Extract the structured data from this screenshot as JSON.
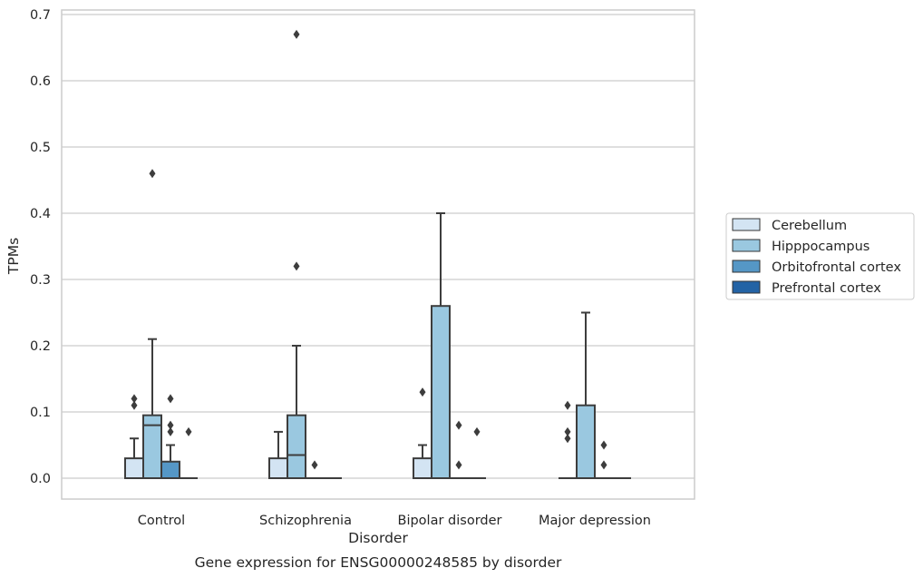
{
  "chart_data": {
    "type": "box",
    "title": "Gene expression for ENSG00000248585 by disorder",
    "xlabel": "Disorder",
    "ylabel": "TPMs",
    "ylim": [
      -0.032,
      0.705
    ],
    "yticks": [
      0.0,
      0.1,
      0.2,
      0.3,
      0.4,
      0.5,
      0.6,
      0.7
    ],
    "ytick_labels": [
      "0.0",
      "0.1",
      "0.2",
      "0.3",
      "0.4",
      "0.5",
      "0.6",
      "0.7"
    ],
    "grid": "horizontal",
    "legend_position": "right",
    "categories": [
      "Control",
      "Schizophrenia",
      "Bipolar disorder",
      "Major depression"
    ],
    "series": [
      {
        "name": "Cerebellum",
        "color": "#d3e4f3",
        "boxes": [
          {
            "min": 0.0,
            "q1": 0.0,
            "median": 0.0,
            "q3": 0.03,
            "max": 0.06,
            "outliers": [
              0.11,
              0.12
            ]
          },
          {
            "min": 0.0,
            "q1": 0.0,
            "median": 0.0,
            "q3": 0.03,
            "max": 0.07,
            "outliers": []
          },
          {
            "min": 0.0,
            "q1": 0.0,
            "median": 0.0,
            "q3": 0.03,
            "max": 0.05,
            "outliers": [
              0.13
            ]
          },
          {
            "min": 0.0,
            "q1": 0.0,
            "median": 0.0,
            "q3": 0.0,
            "max": 0.0,
            "outliers": [
              0.06,
              0.07,
              0.11
            ]
          }
        ]
      },
      {
        "name": "Hipppocampus",
        "color": "#9ac8e0",
        "boxes": [
          {
            "min": 0.0,
            "q1": 0.0,
            "median": 0.08,
            "q3": 0.095,
            "max": 0.21,
            "outliers": [
              0.46
            ]
          },
          {
            "min": 0.0,
            "q1": 0.0,
            "median": 0.035,
            "q3": 0.095,
            "max": 0.2,
            "outliers": [
              0.32,
              0.67
            ]
          },
          {
            "min": 0.0,
            "q1": 0.0,
            "median": 0.0,
            "q3": 0.26,
            "max": 0.4,
            "outliers": []
          },
          {
            "min": 0.0,
            "q1": 0.0,
            "median": 0.0,
            "q3": 0.11,
            "max": 0.25,
            "outliers": []
          }
        ]
      },
      {
        "name": "Orbitofrontal cortex",
        "color": "#5597c6",
        "boxes": [
          {
            "min": 0.0,
            "q1": 0.0,
            "median": 0.0,
            "q3": 0.025,
            "max": 0.05,
            "outliers": [
              0.07,
              0.08,
              0.12
            ]
          },
          {
            "min": 0.0,
            "q1": 0.0,
            "median": 0.0,
            "q3": 0.0,
            "max": 0.0,
            "outliers": [
              0.02
            ]
          },
          {
            "min": 0.0,
            "q1": 0.0,
            "median": 0.0,
            "q3": 0.0,
            "max": 0.0,
            "outliers": [
              0.02,
              0.08
            ]
          },
          {
            "min": 0.0,
            "q1": 0.0,
            "median": 0.0,
            "q3": 0.0,
            "max": 0.0,
            "outliers": [
              0.02,
              0.05
            ]
          }
        ]
      },
      {
        "name": "Prefrontal cortex",
        "color": "#2363a5",
        "boxes": [
          {
            "min": 0.0,
            "q1": 0.0,
            "median": 0.0,
            "q3": 0.0,
            "max": 0.0,
            "outliers": [
              0.07
            ]
          },
          {
            "min": 0.0,
            "q1": 0.0,
            "median": 0.0,
            "q3": 0.0,
            "max": 0.0,
            "outliers": []
          },
          {
            "min": 0.0,
            "q1": 0.0,
            "median": 0.0,
            "q3": 0.0,
            "max": 0.0,
            "outliers": [
              0.07
            ]
          },
          {
            "min": 0.0,
            "q1": 0.0,
            "median": 0.0,
            "q3": 0.0,
            "max": 0.0,
            "outliers": []
          }
        ]
      }
    ]
  }
}
